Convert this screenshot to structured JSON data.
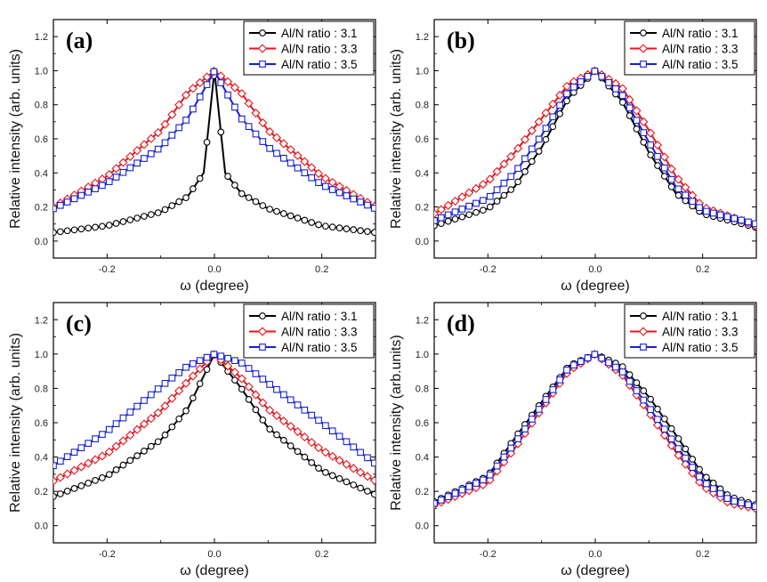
{
  "figure": {
    "panels": [
      {
        "label": "(a)",
        "xlabel": "ω (degree)",
        "ylabel": "Relative intensity (arb. units)"
      },
      {
        "label": "(b)",
        "xlabel": "ω (degree)",
        "ylabel": "Relative intensity (arb. units)"
      },
      {
        "label": "(c)",
        "xlabel": "ω (degree)",
        "ylabel": "Relative intensity (arb. units)"
      },
      {
        "label": "(d)",
        "xlabel": "ω (degree)",
        "ylabel": "Relative intensity (arb.units)"
      }
    ]
  },
  "colors": {
    "black": "#000000",
    "red": "#e8141c",
    "blue": "#1520d8"
  },
  "chart_data": [
    {
      "type": "line",
      "title": "(a)",
      "xlabel": "ω (degree)",
      "ylabel": "Relative intensity (arb. units)",
      "xlim": [
        -0.3,
        0.3
      ],
      "ylim": [
        -0.1,
        1.3
      ],
      "xticks": [
        "-0.2",
        "0.0",
        "0.2"
      ],
      "yticks": [
        "0.0",
        "0.2",
        "0.4",
        "0.6",
        "0.8",
        "1.0",
        "1.2"
      ],
      "legend_position": "top-right",
      "series": [
        {
          "name": "Al/N ratio : 3.1",
          "color": "black",
          "marker": "circle",
          "x": [
            -0.3,
            -0.2,
            -0.1,
            -0.05,
            -0.02,
            -0.01,
            0.0,
            0.01,
            0.02,
            0.05,
            0.1,
            0.2,
            0.3
          ],
          "y": [
            0.05,
            0.09,
            0.17,
            0.26,
            0.4,
            0.7,
            1.0,
            0.7,
            0.4,
            0.28,
            0.19,
            0.09,
            0.05
          ]
        },
        {
          "name": "Al/N ratio : 3.3",
          "color": "red",
          "marker": "diamond",
          "x": [
            -0.3,
            -0.2,
            -0.1,
            -0.05,
            0.0,
            0.05,
            0.1,
            0.2,
            0.3
          ],
          "y": [
            0.2,
            0.38,
            0.65,
            0.87,
            1.0,
            0.87,
            0.65,
            0.38,
            0.2
          ]
        },
        {
          "name": "Al/N ratio : 3.5",
          "color": "blue",
          "marker": "square",
          "x": [
            -0.3,
            -0.2,
            -0.1,
            -0.05,
            -0.01,
            0.0,
            0.01,
            0.05,
            0.1,
            0.2,
            0.3
          ],
          "y": [
            0.19,
            0.34,
            0.55,
            0.72,
            0.94,
            1.0,
            0.94,
            0.72,
            0.55,
            0.33,
            0.19
          ]
        }
      ]
    },
    {
      "type": "line",
      "title": "(b)",
      "xlabel": "ω (degree)",
      "ylabel": "Relative intensity (arb. units)",
      "xlim": [
        -0.3,
        0.3
      ],
      "ylim": [
        -0.1,
        1.3
      ],
      "xticks": [
        "-0.2",
        "0.0",
        "0.2"
      ],
      "yticks": [
        "0.0",
        "0.2",
        "0.4",
        "0.6",
        "0.8",
        "1.0",
        "1.2"
      ],
      "legend_position": "top-right",
      "series": [
        {
          "name": "Al/N ratio : 3.1",
          "color": "black",
          "marker": "circle",
          "x": [
            -0.3,
            -0.2,
            -0.15,
            -0.1,
            -0.05,
            0.0,
            0.05,
            0.1,
            0.15,
            0.2,
            0.3
          ],
          "y": [
            0.09,
            0.19,
            0.32,
            0.55,
            0.84,
            1.0,
            0.82,
            0.52,
            0.28,
            0.16,
            0.08
          ]
        },
        {
          "name": "Al/N ratio : 3.3",
          "color": "red",
          "marker": "diamond",
          "x": [
            -0.3,
            -0.2,
            -0.15,
            -0.1,
            -0.05,
            0.0,
            0.05,
            0.1,
            0.15,
            0.2,
            0.3
          ],
          "y": [
            0.16,
            0.35,
            0.52,
            0.72,
            0.92,
            1.0,
            0.9,
            0.65,
            0.38,
            0.2,
            0.09
          ]
        },
        {
          "name": "Al/N ratio : 3.5",
          "color": "blue",
          "marker": "square",
          "x": [
            -0.3,
            -0.2,
            -0.15,
            -0.1,
            -0.05,
            0.0,
            0.05,
            0.1,
            0.15,
            0.2,
            0.3
          ],
          "y": [
            0.12,
            0.25,
            0.4,
            0.62,
            0.88,
            1.0,
            0.86,
            0.58,
            0.32,
            0.18,
            0.1
          ]
        }
      ]
    },
    {
      "type": "line",
      "title": "(c)",
      "xlabel": "ω (degree)",
      "ylabel": "Relative intensity (arb. units)",
      "xlim": [
        -0.3,
        0.3
      ],
      "ylim": [
        -0.1,
        1.3
      ],
      "xticks": [
        "-0.2",
        "0.0",
        "0.2"
      ],
      "yticks": [
        "0.0",
        "0.2",
        "0.4",
        "0.6",
        "0.8",
        "1.0",
        "1.2"
      ],
      "legend_position": "top-right",
      "series": [
        {
          "name": "Al/N ratio : 3.1",
          "color": "black",
          "marker": "circle",
          "x": [
            -0.3,
            -0.2,
            -0.1,
            -0.05,
            0.0,
            0.05,
            0.1,
            0.2,
            0.3
          ],
          "y": [
            0.17,
            0.29,
            0.5,
            0.68,
            1.0,
            0.8,
            0.57,
            0.32,
            0.18
          ]
        },
        {
          "name": "Al/N ratio : 3.3",
          "color": "red",
          "marker": "diamond",
          "x": [
            -0.3,
            -0.2,
            -0.1,
            -0.05,
            0.0,
            0.05,
            0.1,
            0.2,
            0.3
          ],
          "y": [
            0.26,
            0.42,
            0.67,
            0.84,
            1.0,
            0.86,
            0.68,
            0.44,
            0.26
          ]
        },
        {
          "name": "Al/N ratio : 3.5",
          "color": "blue",
          "marker": "square",
          "x": [
            -0.3,
            -0.2,
            -0.1,
            -0.05,
            0.0,
            0.05,
            0.1,
            0.2,
            0.3
          ],
          "y": [
            0.35,
            0.55,
            0.81,
            0.93,
            1.0,
            0.95,
            0.83,
            0.6,
            0.36
          ]
        }
      ]
    },
    {
      "type": "line",
      "title": "(d)",
      "xlabel": "ω (degree)",
      "ylabel": "Relative intensity (arb.units)",
      "xlim": [
        -0.3,
        0.3
      ],
      "ylim": [
        -0.1,
        1.3
      ],
      "xticks": [
        "-0.2",
        "0.0",
        "0.2"
      ],
      "yticks": [
        "0.0",
        "0.2",
        "0.4",
        "0.6",
        "0.8",
        "1.0",
        "1.2"
      ],
      "legend_position": "top-right",
      "series": [
        {
          "name": "Al/N ratio : 3.1",
          "color": "black",
          "marker": "circle",
          "x": [
            -0.3,
            -0.2,
            -0.15,
            -0.1,
            -0.05,
            0.0,
            0.05,
            0.1,
            0.15,
            0.2,
            0.25,
            0.3
          ],
          "y": [
            0.14,
            0.29,
            0.51,
            0.72,
            0.93,
            1.0,
            0.93,
            0.75,
            0.53,
            0.3,
            0.17,
            0.12
          ]
        },
        {
          "name": "Al/N ratio : 3.3",
          "color": "red",
          "marker": "diamond",
          "x": [
            -0.3,
            -0.2,
            -0.15,
            -0.1,
            -0.05,
            0.0,
            0.05,
            0.1,
            0.15,
            0.2,
            0.25,
            0.3
          ],
          "y": [
            0.12,
            0.25,
            0.45,
            0.68,
            0.9,
            1.0,
            0.88,
            0.66,
            0.43,
            0.23,
            0.13,
            0.1
          ]
        },
        {
          "name": "Al/N ratio : 3.5",
          "color": "blue",
          "marker": "square",
          "x": [
            -0.3,
            -0.2,
            -0.15,
            -0.1,
            -0.05,
            0.0,
            0.05,
            0.1,
            0.15,
            0.2,
            0.25,
            0.3
          ],
          "y": [
            0.13,
            0.28,
            0.48,
            0.7,
            0.92,
            1.0,
            0.9,
            0.69,
            0.47,
            0.26,
            0.15,
            0.11
          ]
        }
      ]
    }
  ]
}
